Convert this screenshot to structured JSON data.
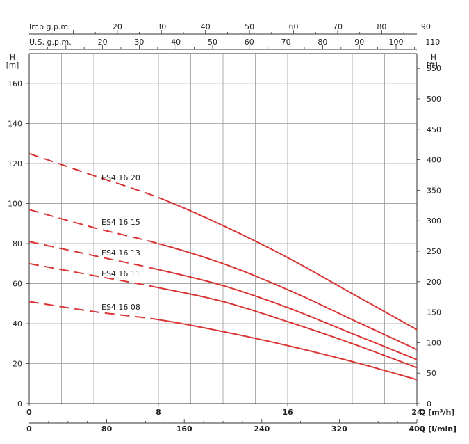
{
  "chart_data": {
    "type": "line",
    "units": {
      "left_axis_title": "H",
      "left_axis_unit": "[m]",
      "right_axis_title": "H",
      "right_axis_unit": "[ft]",
      "bottom_axis_1_label": "Q [m³/h]",
      "bottom_axis_2_label": "Q [l/min]",
      "top_axis_1_label": "Imp g.p.m.",
      "top_axis_2_label": "U.S. g.p.m."
    },
    "x_m3h_ticks": [
      "0",
      "8",
      "16",
      "24"
    ],
    "x_lmin_ticks": [
      "0",
      "80",
      "160",
      "240",
      "320",
      "400"
    ],
    "y_m_ticks": [
      "0",
      "20",
      "40",
      "60",
      "80",
      "100",
      "120",
      "140",
      "160"
    ],
    "y_ft_ticks": [
      "0",
      "50",
      "100",
      "150",
      "200",
      "250",
      "300",
      "350",
      "400",
      "450",
      "500",
      "550"
    ],
    "imp_gpm_ticks": [
      "20",
      "30",
      "40",
      "50",
      "60",
      "70",
      "80",
      "90"
    ],
    "us_gpm_ticks": [
      "20",
      "30",
      "40",
      "50",
      "60",
      "70",
      "80",
      "90",
      "100",
      "110"
    ],
    "xlim_m3h": [
      0,
      24
    ],
    "ylim_m": [
      0,
      175
    ],
    "grid": true,
    "series": [
      {
        "name": "ES4 16 20",
        "points": [
          [
            0,
            125
          ],
          [
            4,
            114
          ],
          [
            8,
            103
          ],
          [
            12,
            89
          ],
          [
            16,
            73
          ],
          [
            20,
            55
          ],
          [
            24,
            37
          ]
        ],
        "dashed_until": 8
      },
      {
        "name": "ES4 16 15",
        "points": [
          [
            0,
            97
          ],
          [
            4,
            88
          ],
          [
            8,
            80
          ],
          [
            12,
            70
          ],
          [
            16,
            57
          ],
          [
            20,
            42
          ],
          [
            24,
            27
          ]
        ],
        "dashed_until": 8
      },
      {
        "name": "ES4 16 13",
        "points": [
          [
            0,
            81
          ],
          [
            4,
            74
          ],
          [
            8,
            67
          ],
          [
            12,
            59
          ],
          [
            16,
            48
          ],
          [
            20,
            35
          ],
          [
            24,
            22
          ]
        ],
        "dashed_until": 8
      },
      {
        "name": "ES4 16 11",
        "points": [
          [
            0,
            70
          ],
          [
            4,
            64
          ],
          [
            8,
            58
          ],
          [
            12,
            51
          ],
          [
            16,
            41
          ],
          [
            20,
            30
          ],
          [
            24,
            18
          ]
        ],
        "dashed_until": 8
      },
      {
        "name": "ES4 16 08",
        "points": [
          [
            0,
            51
          ],
          [
            4,
            46
          ],
          [
            8,
            42
          ],
          [
            12,
            36
          ],
          [
            16,
            29
          ],
          [
            20,
            21
          ],
          [
            24,
            12
          ]
        ],
        "dashed_until": 8
      }
    ],
    "line_color": "#d93636"
  }
}
